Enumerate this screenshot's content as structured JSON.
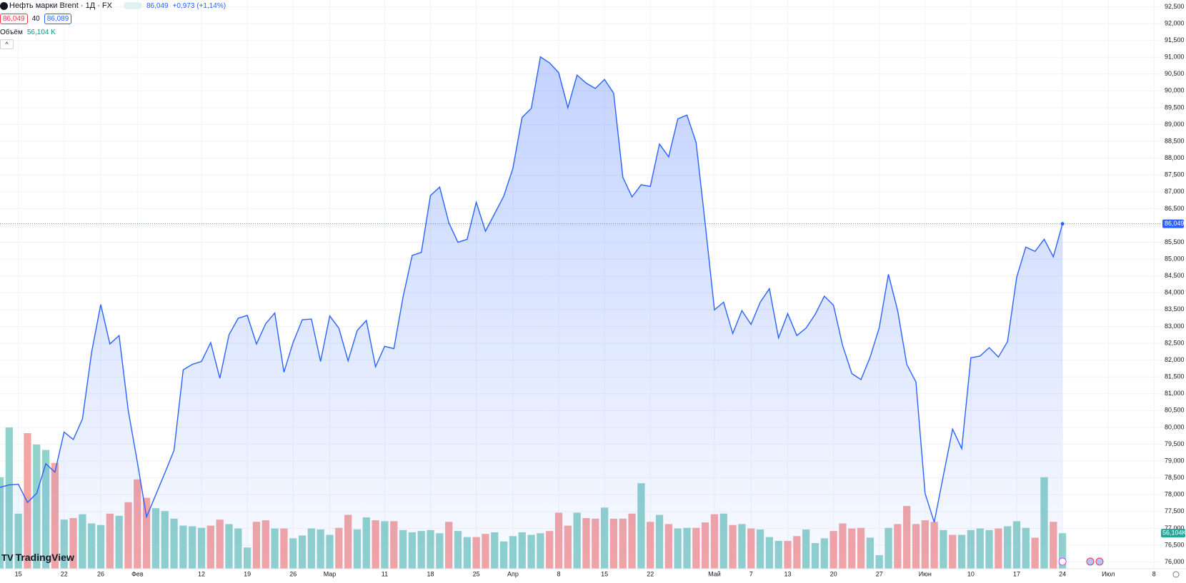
{
  "header": {
    "title": "Нефть марки Brent · 1Д · FX",
    "bid": "86,049",
    "spread": "40",
    "ask": "86,089",
    "price": "86,049",
    "change": "+0,973 (+1,14%)",
    "volume_label": "Объём",
    "volume_value": "56,104 K"
  },
  "watermark": "TradingView",
  "chart_data": {
    "type": "line",
    "color": "#2962ff",
    "grid": true,
    "ylim": [
      75.8,
      92.7
    ],
    "yticks": [
      {
        "value": 76,
        "label": "76,000"
      },
      {
        "value": 76.5,
        "label": "76,500"
      },
      {
        "value": 77,
        "label": "77,000"
      },
      {
        "value": 77.5,
        "label": "77,500"
      },
      {
        "value": 78,
        "label": "78,000"
      },
      {
        "value": 78.5,
        "label": "78,500"
      },
      {
        "value": 79,
        "label": "79,000"
      },
      {
        "value": 79.5,
        "label": "79,500"
      },
      {
        "value": 80,
        "label": "80,000"
      },
      {
        "value": 80.5,
        "label": "80,500"
      },
      {
        "value": 81,
        "label": "81,000"
      },
      {
        "value": 81.5,
        "label": "81,500"
      },
      {
        "value": 82,
        "label": "82,000"
      },
      {
        "value": 82.5,
        "label": "82,500"
      },
      {
        "value": 83,
        "label": "83,000"
      },
      {
        "value": 83.5,
        "label": "83,500"
      },
      {
        "value": 84,
        "label": "84,000"
      },
      {
        "value": 84.5,
        "label": "84,500"
      },
      {
        "value": 85,
        "label": "85,000"
      },
      {
        "value": 85.5,
        "label": "85,500"
      },
      {
        "value": 86,
        "label": "86,000"
      },
      {
        "value": 86.5,
        "label": "86,500"
      },
      {
        "value": 87,
        "label": "87,000"
      },
      {
        "value": 87.5,
        "label": "87,500"
      },
      {
        "value": 88,
        "label": "88,000"
      },
      {
        "value": 88.5,
        "label": "88,500"
      },
      {
        "value": 89,
        "label": "89,000"
      },
      {
        "value": 89.5,
        "label": "89,500"
      },
      {
        "value": 90,
        "label": "90,000"
      },
      {
        "value": 90.5,
        "label": "90,500"
      },
      {
        "value": 91,
        "label": "91,000"
      },
      {
        "value": 91.5,
        "label": "91,500"
      },
      {
        "value": 92,
        "label": "92,000"
      },
      {
        "value": 92.5,
        "label": "92,500"
      }
    ],
    "categories": [
      null,
      null,
      "15",
      null,
      null,
      null,
      null,
      "22",
      null,
      null,
      null,
      "26",
      null,
      null,
      null,
      "Фев",
      null,
      null,
      null,
      null,
      null,
      null,
      "12",
      null,
      null,
      null,
      null,
      "19",
      null,
      null,
      null,
      null,
      "26",
      null,
      null,
      null,
      "Мар",
      null,
      null,
      null,
      null,
      null,
      "11",
      null,
      null,
      null,
      null,
      "18",
      null,
      null,
      null,
      null,
      "25",
      null,
      null,
      null,
      "Апр",
      null,
      null,
      null,
      null,
      "8",
      null,
      null,
      null,
      null,
      "15",
      null,
      null,
      null,
      null,
      "22",
      null,
      null,
      null,
      null,
      null,
      null,
      "Май",
      null,
      null,
      null,
      "7",
      null,
      null,
      null,
      "13",
      null,
      null,
      null,
      null,
      "20",
      null,
      null,
      null,
      null,
      "27",
      null,
      null,
      null,
      null,
      "Июн",
      null,
      null,
      null,
      null,
      "10",
      null,
      null,
      null,
      null,
      "17",
      null,
      null,
      null,
      null,
      "24",
      null,
      null,
      null,
      null,
      "Июл",
      null,
      null,
      null,
      null,
      "8"
    ],
    "values": [
      78.22,
      78.29,
      78.31,
      77.77,
      78.04,
      78.92,
      78.67,
      79.86,
      79.64,
      80.25,
      82.23,
      83.65,
      82.48,
      82.73,
      80.5,
      78.96,
      77.34,
      77.99,
      78.65,
      79.32,
      81.71,
      81.87,
      81.96,
      82.52,
      81.46,
      82.75,
      83.24,
      83.33,
      82.48,
      83.08,
      83.4,
      81.64,
      82.52,
      83.2,
      83.22,
      81.96,
      83.31,
      82.95,
      81.98,
      82.88,
      83.18,
      81.8,
      82.41,
      82.34,
      83.87,
      85.11,
      85.2,
      86.89,
      87.14,
      86.08,
      85.5,
      85.59,
      86.69,
      85.83,
      86.35,
      86.87,
      87.7,
      89.21,
      89.48,
      91.01,
      90.83,
      90.54,
      89.5,
      90.47,
      90.23,
      90.07,
      90.34,
      89.93,
      87.43,
      86.85,
      87.21,
      87.16,
      88.42,
      88.04,
      89.17,
      89.28,
      88.47,
      86.04,
      83.49,
      83.72,
      82.79,
      83.47,
      83.06,
      83.72,
      84.12,
      82.66,
      83.38,
      82.73,
      82.95,
      83.36,
      83.9,
      83.63,
      82.43,
      81.6,
      81.42,
      82.09,
      82.97,
      84.55,
      83.47,
      81.87,
      81.35,
      78.04,
      77.18,
      78.58,
      79.95,
      79.37,
      82.07,
      82.12,
      82.37,
      82.09,
      82.55,
      84.46,
      85.36,
      85.23,
      85.59,
      85.07,
      86.049,
      null,
      null,
      null,
      null,
      null,
      null,
      null,
      null,
      null,
      null
    ],
    "volume_values": [
      144.5,
      223,
      87,
      214,
      196,
      187.5,
      167,
      77.5,
      80,
      86,
      71.5,
      69,
      87,
      83.5,
      105,
      141,
      112,
      95.5,
      91,
      79,
      68,
      67,
      64.5,
      68,
      77.5,
      70.5,
      63.5,
      33.5,
      74,
      76.5,
      63.5,
      63.5,
      48,
      52.5,
      63.5,
      62,
      53.5,
      64.5,
      85,
      62,
      81,
      76.5,
      75,
      75,
      61,
      57.5,
      59.5,
      61,
      56,
      74,
      59.5,
      50,
      50,
      55,
      57.5,
      43,
      51.5,
      57.5,
      53.5,
      56,
      59.5,
      88.5,
      68,
      88.5,
      80,
      79,
      96.5,
      79,
      79,
      87,
      135,
      74,
      85,
      70.5,
      63.5,
      64.5,
      64.5,
      73,
      86,
      87,
      69,
      70.5,
      63.5,
      62,
      50,
      44,
      44,
      51.5,
      62,
      40.5,
      48,
      59.5,
      71.5,
      63.5,
      64.5,
      49,
      21.5,
      64.5,
      70.5,
      99,
      70.5,
      76.5,
      74,
      61,
      53.5,
      53.5,
      61,
      63.5,
      61,
      63.5,
      67,
      75,
      64.5,
      49,
      144.5,
      74,
      56.104,
      null,
      null,
      null,
      null,
      null,
      null,
      null,
      null,
      null,
      null
    ],
    "volume_colors": [
      "#92d2cc",
      "#92d2cc",
      "#92d2cc",
      "#f5a5a4",
      "#92d2cc",
      "#92d2cc",
      "#f5a5a4",
      "#92d2cc",
      "#f5a5a4",
      "#92d2cc",
      "#92d2cc",
      "#92d2cc",
      "#f5a5a4",
      "#92d2cc",
      "#f5a5a4",
      "#f5a5a4",
      "#f5a5a4",
      "#92d2cc",
      "#92d2cc",
      "#92d2cc",
      "#92d2cc",
      "#92d2cc",
      "#92d2cc",
      "#f5a5a4",
      "#f5a5a4",
      "#92d2cc",
      "#92d2cc",
      "#92d2cc",
      "#f5a5a4",
      "#f5a5a4",
      "#92d2cc",
      "#f5a5a4",
      "#92d2cc",
      "#92d2cc",
      "#92d2cc",
      "#92d2cc",
      "#92d2cc",
      "#f5a5a4",
      "#f5a5a4",
      "#92d2cc",
      "#92d2cc",
      "#f5a5a4",
      "#92d2cc",
      "#f5a5a4",
      "#92d2cc",
      "#92d2cc",
      "#92d2cc",
      "#92d2cc",
      "#92d2cc",
      "#f5a5a4",
      "#92d2cc",
      "#92d2cc",
      "#f5a5a4",
      "#f5a5a4",
      "#92d2cc",
      "#92d2cc",
      "#92d2cc",
      "#92d2cc",
      "#92d2cc",
      "#92d2cc",
      "#f5a5a4",
      "#f5a5a4",
      "#f5a5a4",
      "#92d2cc",
      "#f5a5a4",
      "#f5a5a4",
      "#92d2cc",
      "#f5a5a4",
      "#f5a5a4",
      "#f5a5a4",
      "#92d2cc",
      "#f5a5a4",
      "#92d2cc",
      "#f5a5a4",
      "#92d2cc",
      "#92d2cc",
      "#f5a5a4",
      "#f5a5a4",
      "#f5a5a4",
      "#92d2cc",
      "#f5a5a4",
      "#92d2cc",
      "#f5a5a4",
      "#92d2cc",
      "#92d2cc",
      "#92d2cc",
      "#f5a5a4",
      "#f5a5a4",
      "#92d2cc",
      "#92d2cc",
      "#92d2cc",
      "#f5a5a4",
      "#f5a5a4",
      "#f5a5a4",
      "#f5a5a4",
      "#92d2cc",
      "#92d2cc",
      "#92d2cc",
      "#f5a5a4",
      "#f5a5a4",
      "#f5a5a4",
      "#f5a5a4",
      "#f5a5a4",
      "#92d2cc",
      "#f5a5a4",
      "#92d2cc",
      "#92d2cc",
      "#92d2cc",
      "#92d2cc",
      "#f5a5a4",
      "#92d2cc",
      "#92d2cc",
      "#92d2cc",
      "#f5a5a4",
      "#92d2cc",
      "#f5a5a4",
      "#92d2cc",
      null,
      null,
      null,
      null,
      null,
      null,
      null,
      null,
      null,
      null
    ],
    "last_price": {
      "value": 86.049,
      "label": "86,049"
    },
    "last_volume": {
      "value": 56.104,
      "label": "56,104K"
    }
  }
}
